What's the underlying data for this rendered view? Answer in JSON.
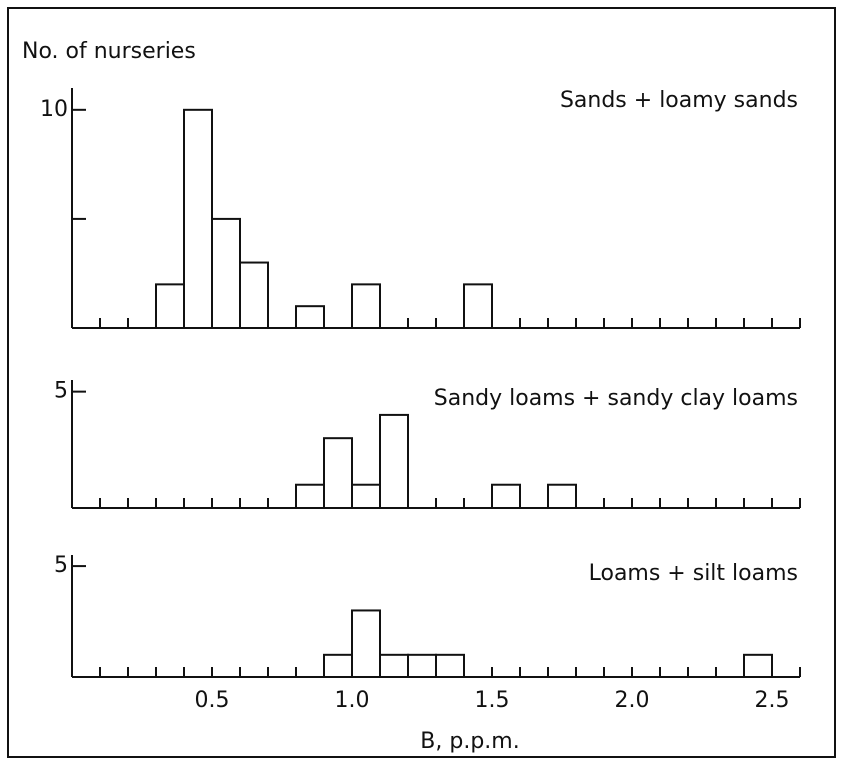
{
  "chart_data": [
    {
      "type": "histogram",
      "title": "Sands + loamy sands",
      "ylabel": "No. of nurseries",
      "bins": [
        0,
        0.1,
        0.2,
        0.3,
        0.4,
        0.5,
        0.6,
        0.7,
        0.8,
        0.9,
        1.0,
        1.1,
        1.2,
        1.3,
        1.4,
        1.5,
        1.6,
        1.7,
        1.8,
        1.9,
        2.0,
        2.1,
        2.2,
        2.3,
        2.4,
        2.5,
        2.6
      ],
      "values": [
        0,
        0,
        0,
        2,
        10,
        5,
        3,
        0,
        1,
        0,
        2,
        0,
        0,
        0,
        2,
        0,
        0,
        0,
        0,
        0,
        0,
        0,
        0,
        0,
        0,
        0
      ],
      "xlim": [
        0,
        2.6
      ],
      "ylim": [
        0,
        11
      ],
      "yticks": [
        {
          "value": 5,
          "label": null
        },
        10
      ],
      "color": "#ffffff"
    },
    {
      "type": "histogram",
      "title": "Sandy loams + sandy clay loams",
      "bins": [
        0,
        0.1,
        0.2,
        0.3,
        0.4,
        0.5,
        0.6,
        0.7,
        0.8,
        0.9,
        1.0,
        1.1,
        1.2,
        1.3,
        1.4,
        1.5,
        1.6,
        1.7,
        1.8,
        1.9,
        2.0,
        2.1,
        2.2,
        2.3,
        2.4,
        2.5,
        2.6
      ],
      "values": [
        0,
        0,
        0,
        0,
        0,
        0,
        0,
        0,
        1,
        3,
        1,
        4,
        0,
        0,
        0,
        1,
        0,
        1,
        0,
        0,
        0,
        0,
        0,
        0,
        0,
        0
      ],
      "xlim": [
        0,
        2.6
      ],
      "ylim": [
        0,
        5.5
      ],
      "yticks": [
        5
      ],
      "color": "#ffffff"
    },
    {
      "type": "histogram",
      "title": "Loams + silt loams",
      "xlabel": "B, p.p.m.",
      "bins": [
        0,
        0.1,
        0.2,
        0.3,
        0.4,
        0.5,
        0.6,
        0.7,
        0.8,
        0.9,
        1.0,
        1.1,
        1.2,
        1.3,
        1.4,
        1.5,
        1.6,
        1.7,
        1.8,
        1.9,
        2.0,
        2.1,
        2.2,
        2.3,
        2.4,
        2.5,
        2.6
      ],
      "values": [
        0,
        0,
        0,
        0,
        0,
        0,
        0,
        0,
        0,
        1,
        3,
        1,
        1,
        1,
        0,
        0,
        0,
        0,
        0,
        0,
        0,
        0,
        0,
        0,
        1,
        0
      ],
      "xlim": [
        0,
        2.6
      ],
      "ylim": [
        0,
        5.5
      ],
      "yticks": [
        5
      ],
      "xticks": [
        0.5,
        {
          "value": 1,
          "label": "1.0"
        },
        1.5,
        {
          "value": 2,
          "label": "2.0"
        },
        2.5
      ],
      "color": "#ffffff"
    }
  ]
}
